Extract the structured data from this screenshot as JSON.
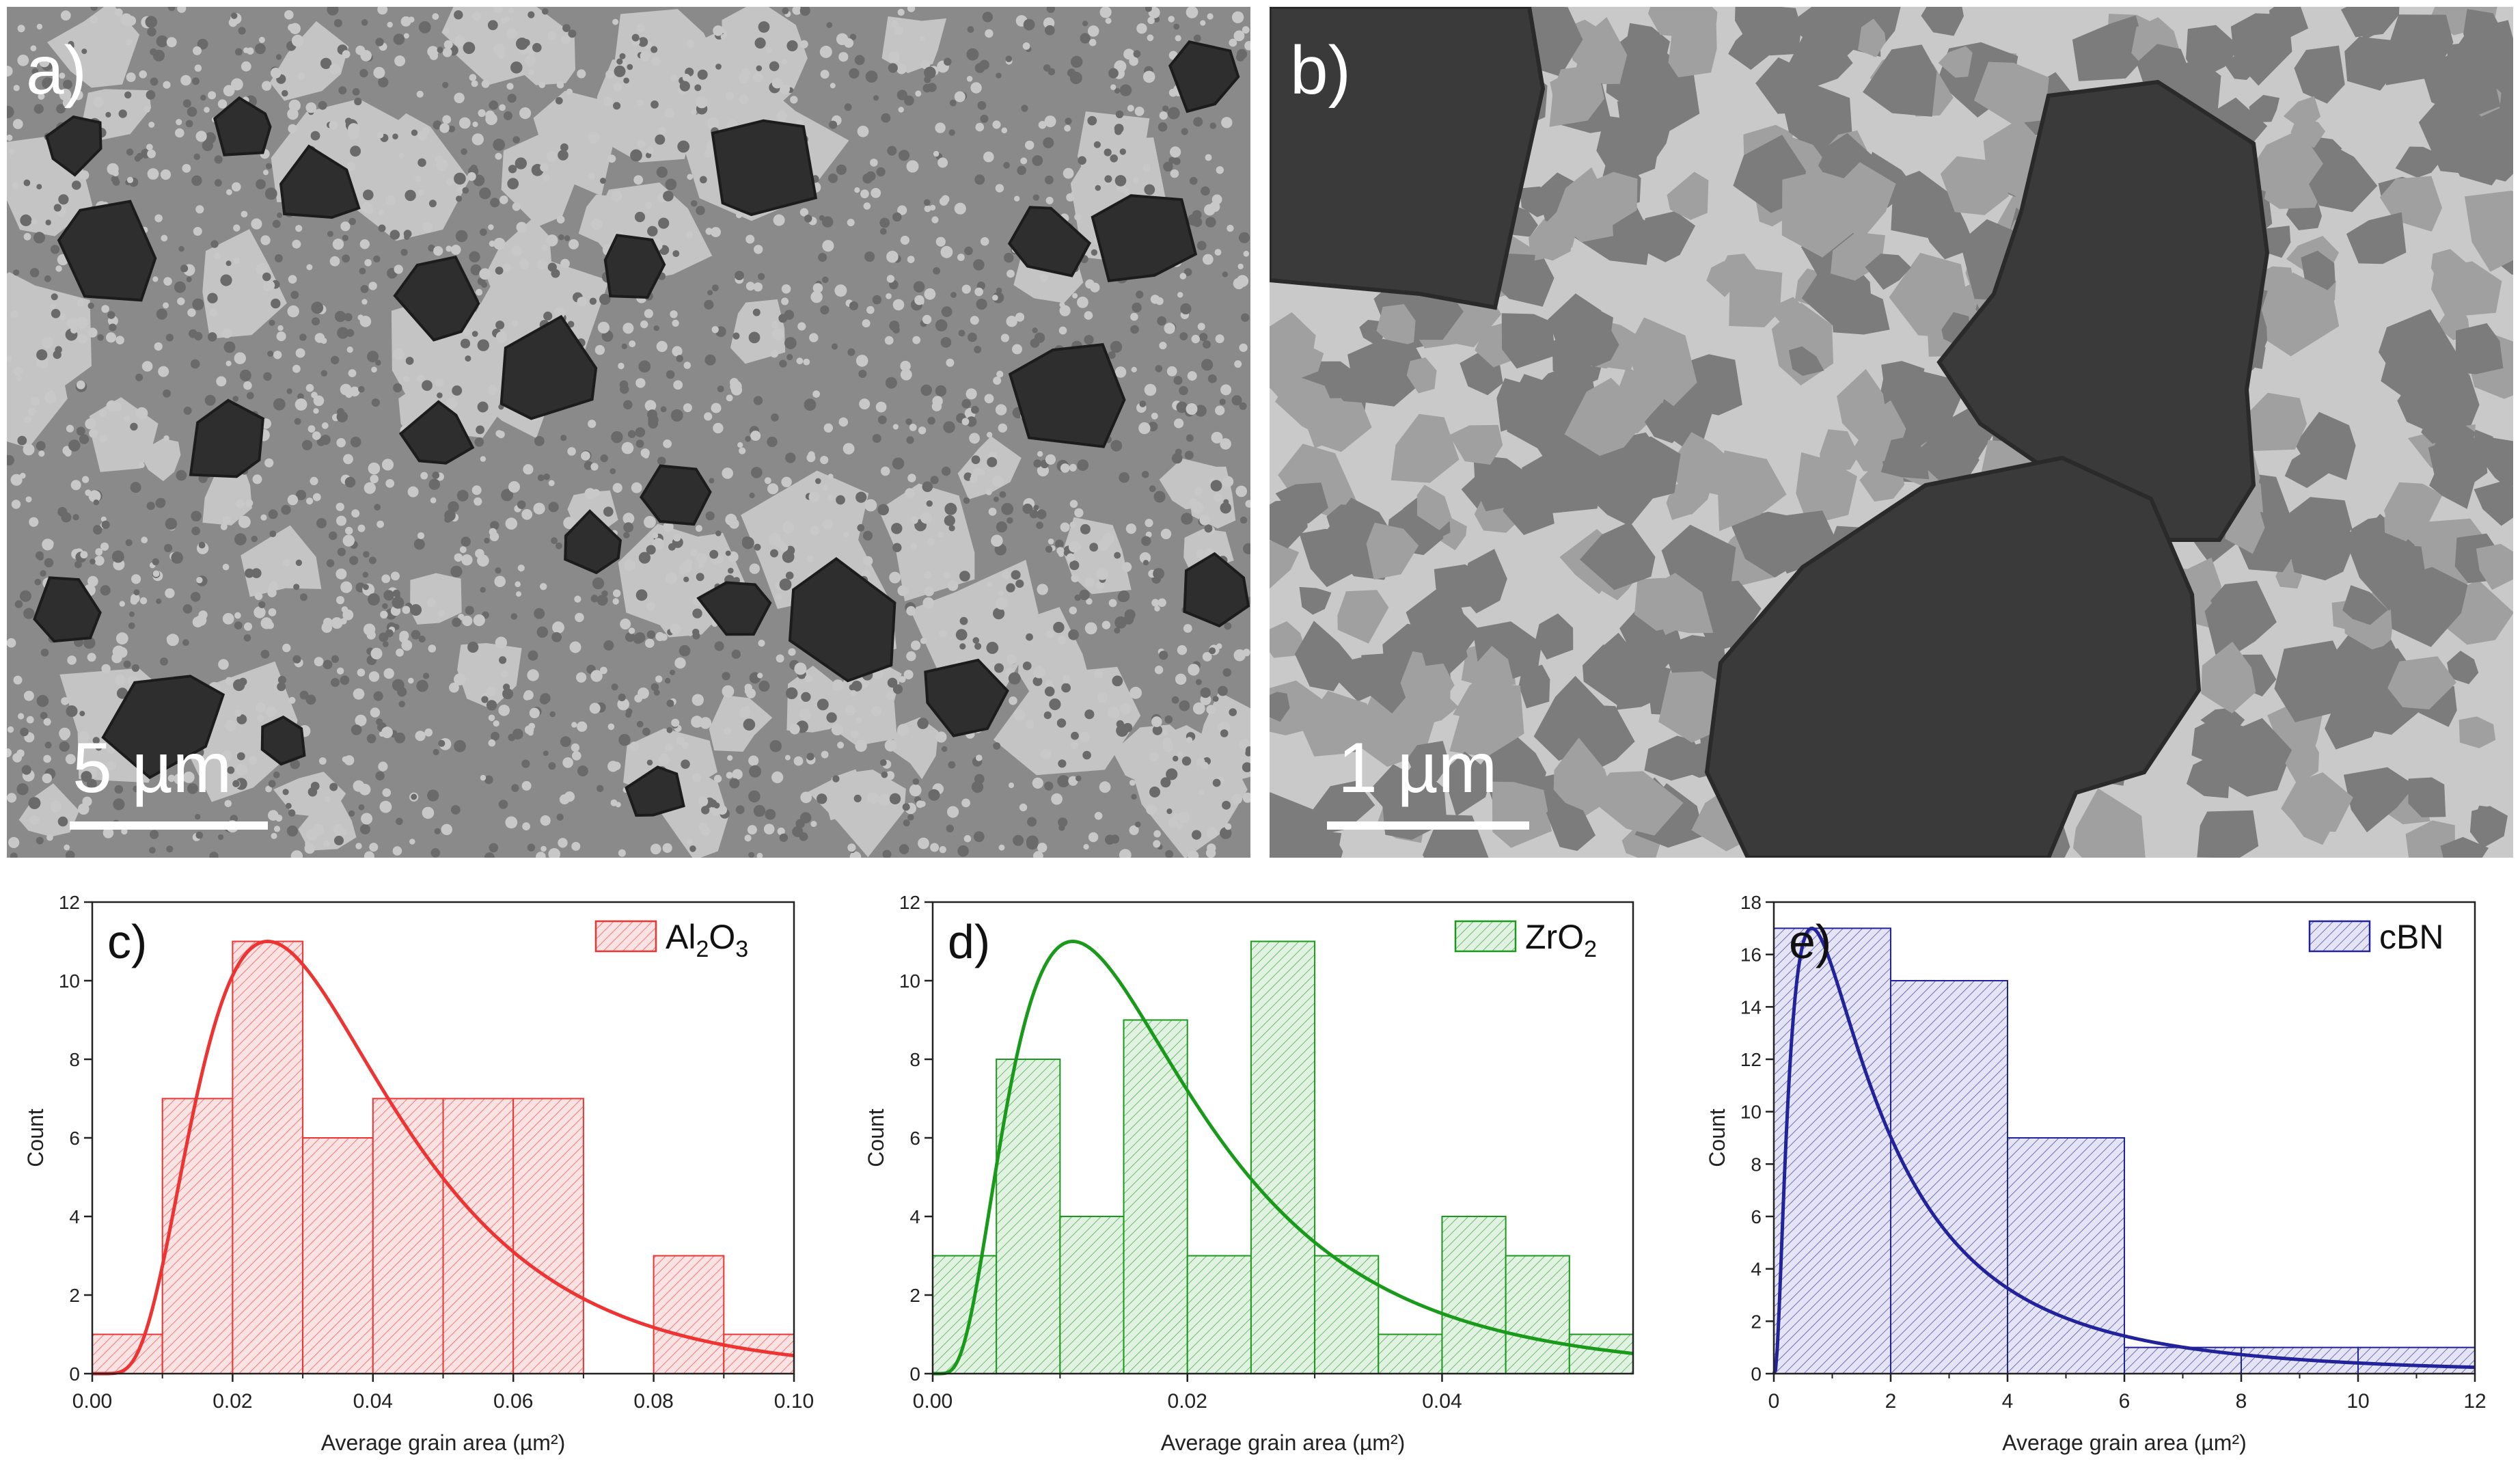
{
  "micrographs": [
    {
      "id": "a",
      "panel_label": "a)",
      "scale_label": "5 µm"
    },
    {
      "id": "b",
      "panel_label": "b)",
      "scale_label": "1 µm"
    }
  ],
  "chart_data": [
    {
      "type": "bar",
      "panel_label": "c)",
      "legend": "Al2O3",
      "legend_parts": {
        "main1": "Al",
        "sub1": "2",
        "main2": "O",
        "sub2": "3"
      },
      "color": "#ee3333",
      "fill": "#fbe3e3",
      "xlabel": "Average grain area (µm²)",
      "ylabel": "Count",
      "xlim": [
        0,
        0.1
      ],
      "ylim": [
        0,
        12
      ],
      "xticks": [
        0.0,
        0.02,
        0.04,
        0.06,
        0.08,
        0.1
      ],
      "xtick_labels": [
        "0.00",
        "0.02",
        "0.04",
        "0.06",
        "0.08",
        "0.10"
      ],
      "yticks": [
        0,
        2,
        4,
        6,
        8,
        10,
        12
      ],
      "ytick_labels": [
        "0",
        "2",
        "4",
        "6",
        "8",
        "10",
        "12"
      ],
      "bin_edges": [
        0,
        0.01,
        0.02,
        0.03,
        0.04,
        0.05,
        0.06,
        0.07,
        0.08,
        0.09,
        0.1
      ],
      "values": [
        1,
        7,
        11,
        6,
        7,
        7,
        7,
        0,
        3,
        1
      ],
      "fit": {
        "type": "lognormal",
        "peak_x": 0.025,
        "peak_y": 11,
        "sigma": 0.55
      },
      "legend_position": "top-right"
    },
    {
      "type": "bar",
      "panel_label": "d)",
      "legend": "ZrO2",
      "legend_parts": {
        "main1": "ZrO",
        "sub1": "2",
        "main2": "",
        "sub2": ""
      },
      "color": "#1a9a1a",
      "fill": "#e2f2e2",
      "xlabel": "Average grain area (µm²)",
      "ylabel": "Count",
      "xlim": [
        0,
        0.055
      ],
      "ylim": [
        0,
        12
      ],
      "xticks": [
        0.0,
        0.02,
        0.04
      ],
      "xtick_labels": [
        "0.00",
        "0.02",
        "0.04"
      ],
      "yticks": [
        0,
        2,
        4,
        6,
        8,
        10,
        12
      ],
      "ytick_labels": [
        "0",
        "2",
        "4",
        "6",
        "8",
        "10",
        "12"
      ],
      "bin_edges": [
        0,
        0.005,
        0.01,
        0.015,
        0.02,
        0.025,
        0.03,
        0.035,
        0.04,
        0.045,
        0.05,
        0.055
      ],
      "values": [
        3,
        8,
        4,
        9,
        3,
        11,
        3,
        1,
        4,
        3,
        1
      ],
      "fit": {
        "type": "lognormal",
        "peak_x": 0.011,
        "peak_y": 11,
        "sigma": 0.65
      },
      "legend_position": "top-right"
    },
    {
      "type": "bar",
      "panel_label": "e)",
      "legend": "cBN",
      "legend_parts": {
        "main1": "cBN",
        "sub1": "",
        "main2": "",
        "sub2": ""
      },
      "color": "#22229a",
      "fill": "#e4e4f4",
      "xlabel": "Average grain area (µm²)",
      "ylabel": "Count",
      "xlim": [
        0,
        12
      ],
      "ylim": [
        0,
        18
      ],
      "xticks": [
        0,
        2,
        4,
        6,
        8,
        10,
        12
      ],
      "xtick_labels": [
        "0",
        "2",
        "4",
        "6",
        "8",
        "10",
        "12"
      ],
      "yticks": [
        0,
        2,
        4,
        6,
        8,
        10,
        12,
        14,
        16,
        18
      ],
      "ytick_labels": [
        "0",
        "2",
        "4",
        "6",
        "8",
        "10",
        "12",
        "14",
        "16",
        "18"
      ],
      "bin_edges": [
        0,
        2,
        4,
        6,
        8,
        10,
        12
      ],
      "values": [
        17,
        15,
        9,
        1,
        1,
        1
      ],
      "fit": {
        "type": "lognormal",
        "peak_x": 0.65,
        "peak_y": 17,
        "sigma": 1.0
      },
      "legend_position": "top-right"
    }
  ]
}
